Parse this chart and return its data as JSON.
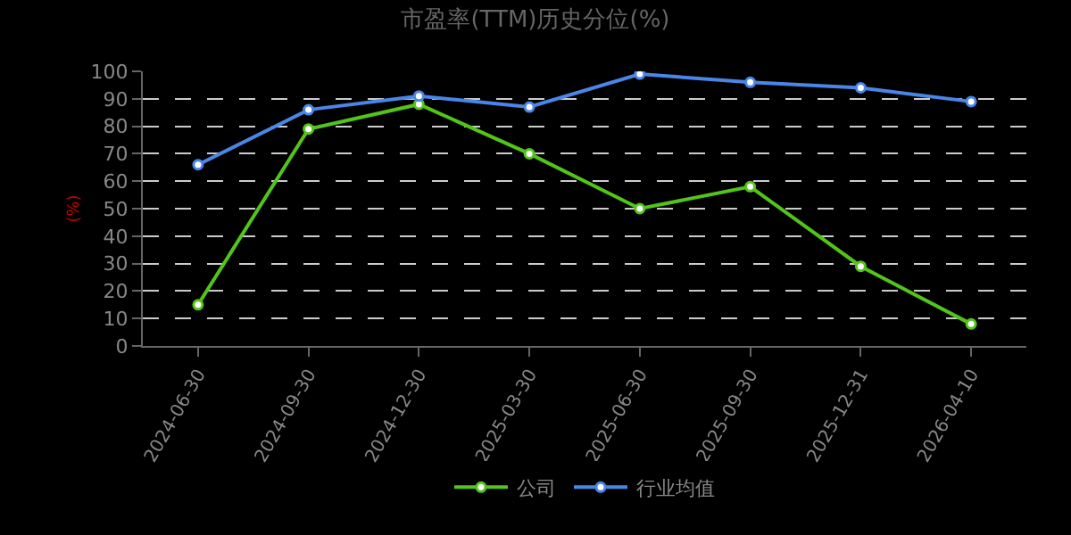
{
  "chart_data": {
    "type": "line",
    "title": "市盈率(TTM)历史分位(%)",
    "ylabel": "(%)",
    "categories": [
      "2024-06-30",
      "2024-09-30",
      "2024-12-30",
      "2025-03-30",
      "2025-06-30",
      "2025-09-30",
      "2025-12-31",
      "2026-04-10"
    ],
    "series": [
      {
        "name": "公司",
        "color": "#52c41a",
        "values": [
          15,
          79,
          88,
          70,
          50,
          58,
          29,
          8
        ]
      },
      {
        "name": "行业均值",
        "color": "#4a86e8",
        "values": [
          66,
          86,
          91,
          87,
          99,
          96,
          94,
          89
        ]
      }
    ],
    "ylim": [
      0,
      100
    ],
    "yticks": [
      0,
      10,
      20,
      30,
      40,
      50,
      60,
      70,
      80,
      90,
      100
    ],
    "grid": "y",
    "legend": "bottom",
    "marker": "circle",
    "line_style": "solid"
  }
}
